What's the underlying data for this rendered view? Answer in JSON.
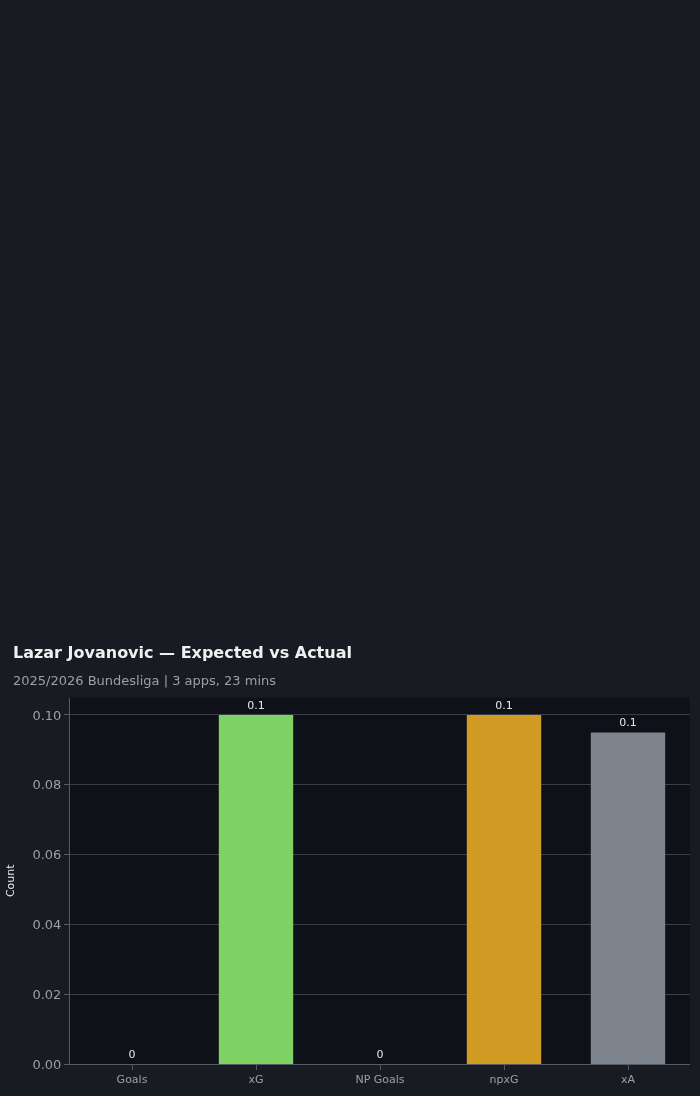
{
  "chart_data": {
    "type": "bar",
    "title": "Lazar Jovanovic — Expected vs Actual",
    "subtitle": "2025/2026 Bundesliga | 3 apps, 23 mins",
    "ylabel": "Count",
    "categories": [
      "Goals",
      "xG",
      "NP Goals",
      "npxG",
      "xA"
    ],
    "values": [
      0,
      0.1,
      0,
      0.1,
      0.095
    ],
    "colors": [
      "#4c9be8",
      "#7ed264",
      "#e8684c",
      "#d19a22",
      "#7e848e"
    ],
    "value_labels": [
      "0",
      "0.1",
      "0",
      "0.1",
      "0.1"
    ],
    "ylim": [
      0,
      0.105
    ],
    "yticks": [
      {
        "value": 0,
        "label": "0.00"
      },
      {
        "value": 0.02,
        "label": "0.02"
      },
      {
        "value": 0.04,
        "label": "0.04"
      },
      {
        "value": 0.06,
        "label": "0.06"
      },
      {
        "value": 0.08,
        "label": "0.08"
      },
      {
        "value": 0.1,
        "label": "0.10"
      }
    ],
    "grid": "y"
  }
}
